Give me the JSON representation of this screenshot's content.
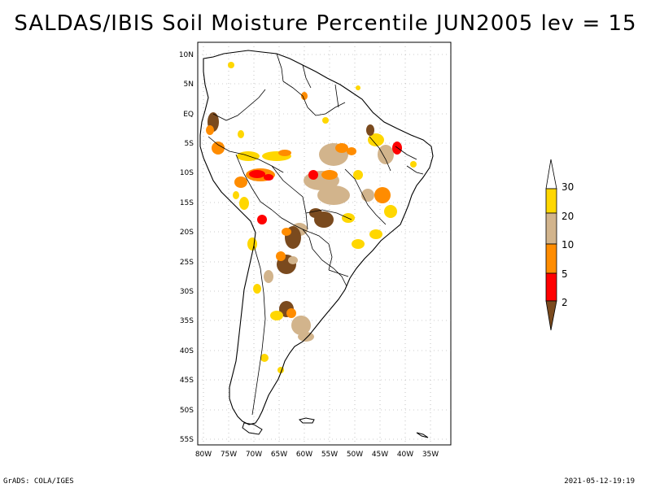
{
  "title": "SALDAS/IBIS Soil Moisture Percentile JUN2005 lev = 15",
  "map": {
    "region": "South America",
    "lon_labels": [
      "80W",
      "75W",
      "70W",
      "65W",
      "60W",
      "55W",
      "50W",
      "45W",
      "40W",
      "35W"
    ],
    "lat_labels": [
      "10N",
      "5N",
      "EQ",
      "5S",
      "10S",
      "15S",
      "20S",
      "25S",
      "30S",
      "35S",
      "40S",
      "45S",
      "50S",
      "55S"
    ]
  },
  "colorbar": {
    "labels": [
      "2",
      "5",
      "10",
      "20",
      "30"
    ],
    "colors": {
      "below_2": "#7a4a1e",
      "2_5": "#ff0000",
      "5_10": "#ff8c00",
      "10_20": "#d2b48c",
      "20_30": "#ffd700",
      "above_30": "#ffffff"
    }
  },
  "footer": {
    "left": "GrADS: COLA/IGES",
    "right": "2021-05-12-19:19"
  }
}
